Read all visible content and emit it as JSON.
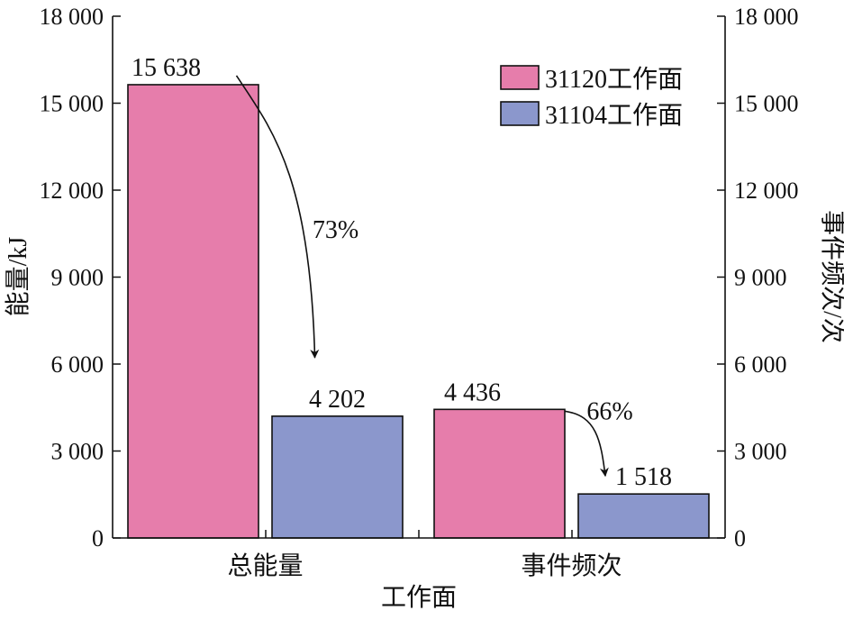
{
  "chart_data": {
    "type": "bar",
    "categories": [
      "总能量",
      "事件频次"
    ],
    "series": [
      {
        "name": "31120工作面",
        "values": [
          15638,
          4436
        ],
        "labels": [
          "15 638",
          "4 436"
        ],
        "color": "#e67dab"
      },
      {
        "name": "31104工作面",
        "values": [
          4202,
          1518
        ],
        "labels": [
          "4 202",
          "1 518"
        ],
        "color": "#8b97cc"
      }
    ],
    "xlabel": "工作面",
    "ylabel": "能量/kJ",
    "y2label": "事件频次/次",
    "ylim": [
      0,
      18000
    ],
    "y2lim": [
      0,
      18000
    ],
    "yticks": [
      0,
      3000,
      6000,
      9000,
      12000,
      15000,
      18000
    ],
    "ytick_labels": [
      "0",
      "3 000",
      "6 000",
      "9 000",
      "12 000",
      "15 000",
      "18 000"
    ],
    "y2tick_labels": [
      "0",
      "3 000",
      "6 000",
      "9 000",
      "12 000",
      "15 000",
      "18 000"
    ],
    "annotations": [
      {
        "text": "73%",
        "category": 0
      },
      {
        "text": "66%",
        "category": 1
      }
    ],
    "legend": "top-right",
    "grid": false
  }
}
